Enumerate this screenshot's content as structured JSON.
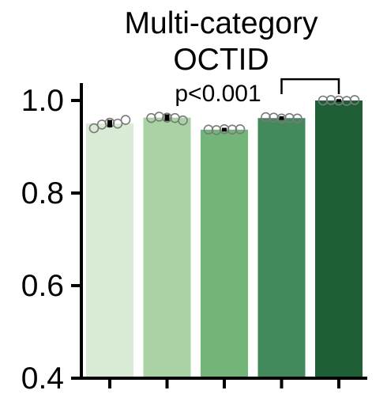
{
  "chart_data": {
    "type": "bar",
    "title": [
      "Multi-category",
      "OCTID"
    ],
    "xlabel": "",
    "ylabel": "",
    "ylim": [
      0.4,
      1.0
    ],
    "y_ticks": [
      0.4,
      0.6,
      0.8,
      1.0
    ],
    "y_tick_labels": [
      "0.4",
      "0.6",
      "0.8",
      "1.0"
    ],
    "categories": [
      "",
      "",
      "",
      "",
      ""
    ],
    "values": [
      0.95,
      0.963,
      0.937,
      0.962,
      1.0
    ],
    "errors": [
      0.008,
      0.007,
      0.004,
      0.004,
      0.003
    ],
    "points": [
      [
        0.94,
        0.948,
        0.952,
        0.95,
        0.958
      ],
      [
        0.962,
        0.965,
        0.963,
        0.962,
        0.957
      ],
      [
        0.937,
        0.936,
        0.938,
        0.937,
        0.938
      ],
      [
        0.964,
        0.963,
        0.961,
        0.962,
        0.961
      ],
      [
        1.0,
        1.001,
        1.0,
        0.999,
        1.001
      ]
    ],
    "colors": [
      "#d9ebd5",
      "#a9d3a4",
      "#73b479",
      "#42895b",
      "#1f5f35"
    ],
    "annotation": {
      "text": "p<0.001",
      "from": 3,
      "to": 4
    },
    "grid": false,
    "legend": "none"
  }
}
